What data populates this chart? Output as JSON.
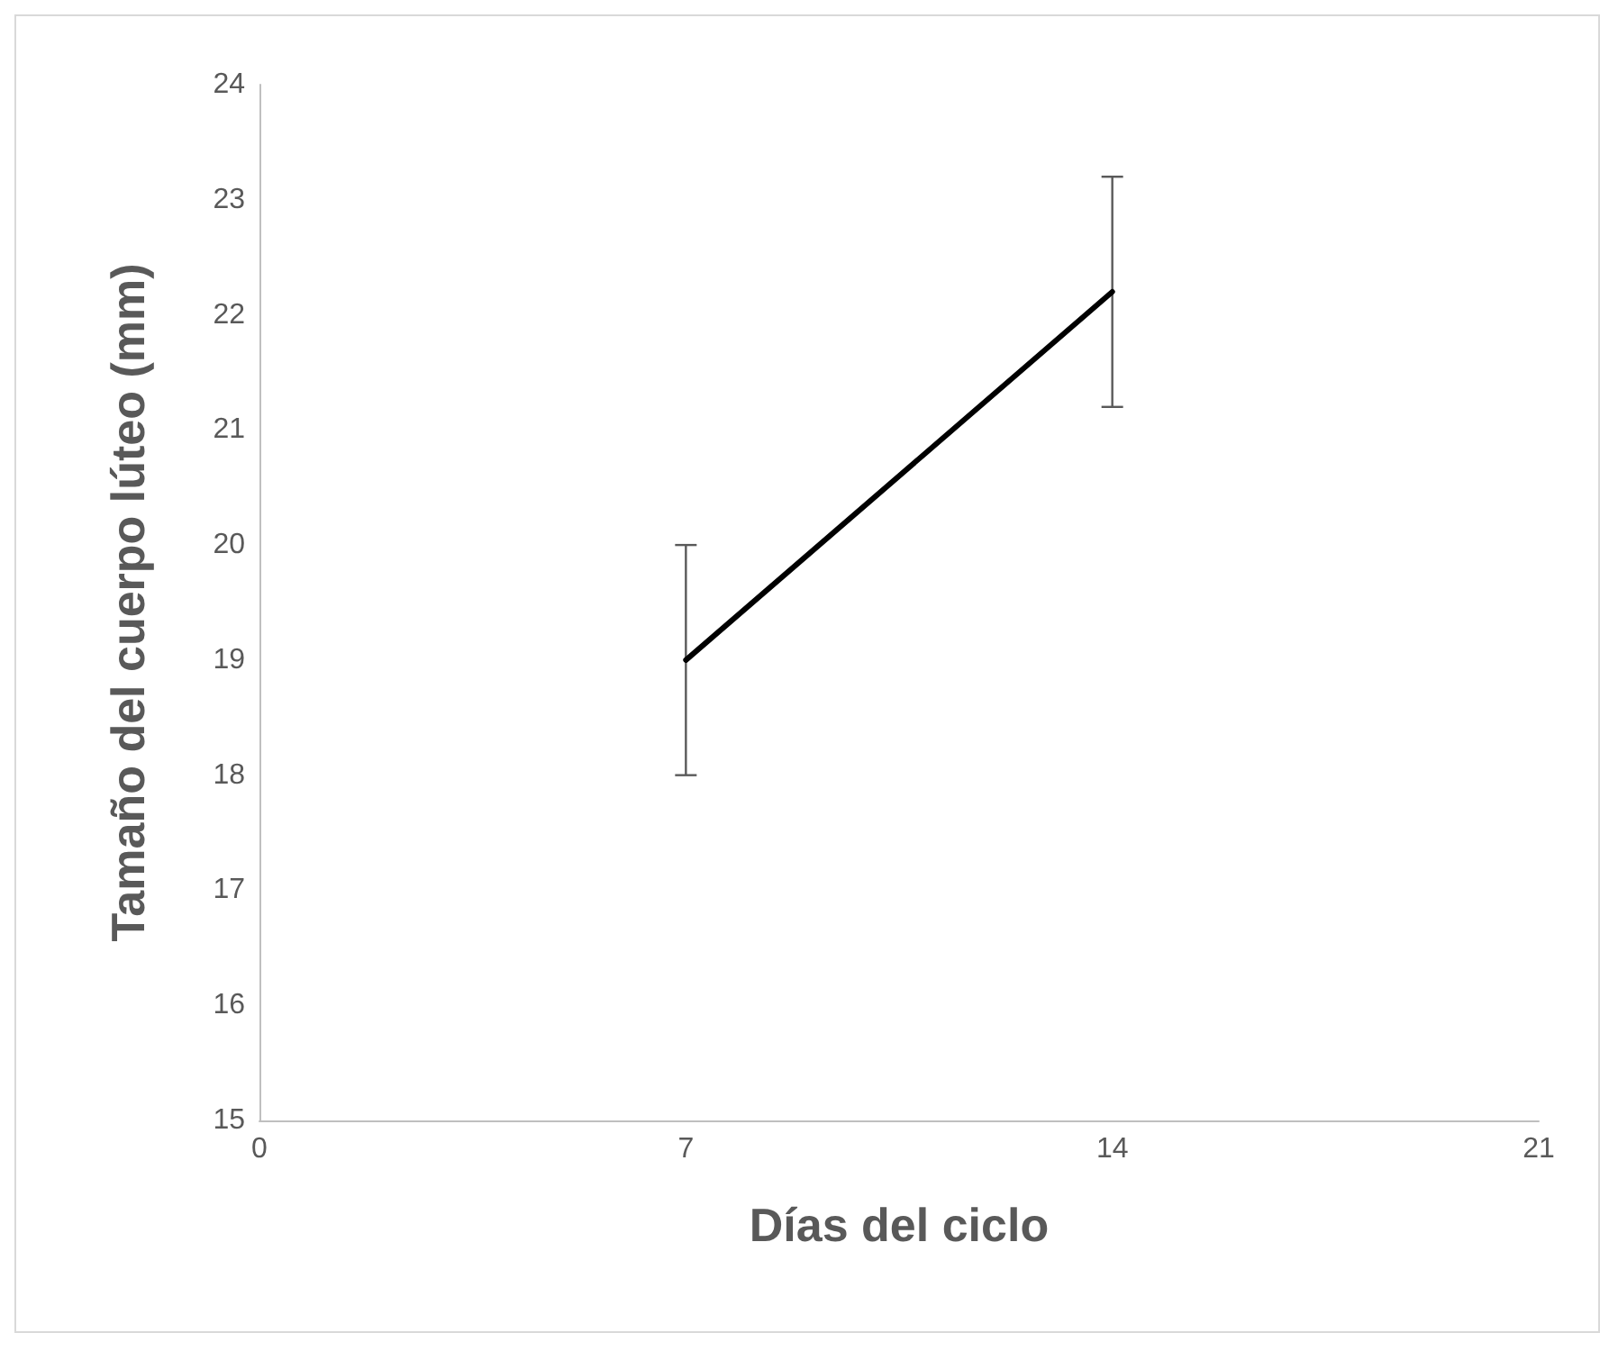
{
  "chart_data": {
    "type": "line",
    "xlabel": "Días del ciclo",
    "ylabel": "Tamaño del cuerpo lúteo (mm)",
    "x": [
      7,
      14
    ],
    "series": [
      {
        "color": "#000000",
        "values": [
          19,
          22.2
        ],
        "errors": [
          1,
          1
        ]
      }
    ],
    "xlim": [
      0,
      21
    ],
    "xticks": [
      0,
      7,
      14,
      21
    ],
    "ylim": [
      15,
      24
    ],
    "yticks": [
      15,
      16,
      17,
      18,
      19,
      20,
      21,
      22,
      23,
      24
    ],
    "grid": false,
    "marker": "none",
    "line_style": "solid"
  }
}
